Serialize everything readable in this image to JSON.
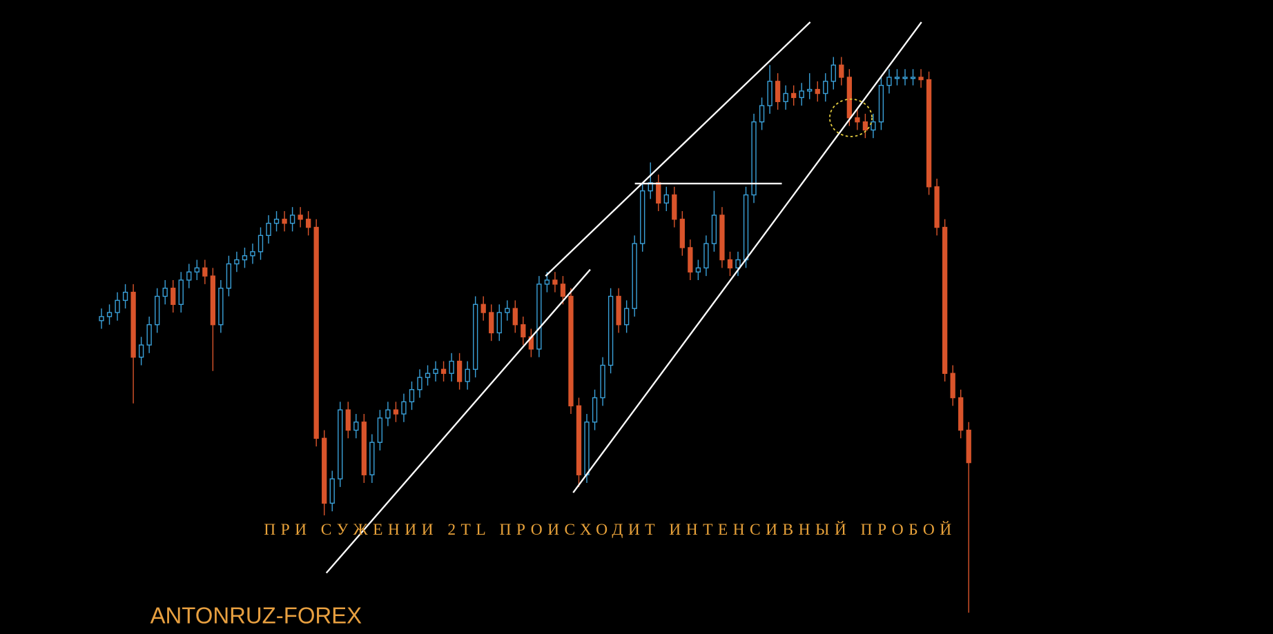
{
  "chart_data": {
    "type": "candlestick",
    "annotations": [
      "ПРИ СУЖЕНИИ 2TL ПРОИСХОДИТ ИНТЕНСИВНЫЙ ПРОБОЙ",
      "ANTONRUZ-FOREX"
    ],
    "up_color": "#3aa0d8",
    "down_color": "#d9542b",
    "ylim": [
      0,
      781
    ],
    "open": [
      386,
      391,
      396,
      411,
      421,
      341,
      356,
      381,
      416,
      426,
      406,
      436,
      446,
      451,
      441,
      381,
      426,
      456,
      461,
      466,
      471,
      491,
      506,
      511,
      506,
      516,
      511,
      501,
      241,
      161,
      191,
      276,
      251,
      261,
      196,
      236,
      266,
      276,
      271,
      286,
      301,
      316,
      321,
      326,
      321,
      336,
      311,
      326,
      406,
      396,
      371,
      396,
      401,
      381,
      366,
      351,
      431,
      436,
      431,
      416,
      281,
      196,
      261,
      291,
      331,
      416,
      381,
      401,
      481,
      546,
      556,
      531,
      541,
      511,
      476,
      446,
      451,
      481,
      516,
      461,
      451,
      461,
      541,
      631,
      651,
      681,
      656,
      666,
      661,
      669,
      671,
      666,
      681,
      701,
      686,
      636,
      631,
      621,
      631,
      676,
      686,
      686,
      686,
      686,
      683,
      551,
      501,
      321,
      291,
      251
    ],
    "high": [
      401,
      406,
      421,
      431,
      431,
      366,
      391,
      426,
      436,
      436,
      446,
      456,
      461,
      461,
      451,
      436,
      466,
      471,
      476,
      481,
      501,
      516,
      521,
      521,
      526,
      526,
      521,
      511,
      251,
      201,
      286,
      286,
      271,
      271,
      246,
      276,
      286,
      286,
      296,
      311,
      326,
      331,
      336,
      336,
      346,
      346,
      336,
      416,
      416,
      406,
      406,
      411,
      411,
      391,
      376,
      441,
      446,
      446,
      441,
      426,
      291,
      271,
      301,
      341,
      426,
      426,
      411,
      491,
      556,
      581,
      566,
      551,
      551,
      521,
      486,
      461,
      491,
      546,
      526,
      471,
      471,
      551,
      641,
      661,
      701,
      691,
      676,
      676,
      679,
      691,
      681,
      691,
      711,
      711,
      696,
      646,
      641,
      641,
      686,
      696,
      696,
      696,
      696,
      696,
      693,
      561,
      511,
      331,
      301,
      261
    ],
    "low": [
      376,
      381,
      386,
      401,
      284,
      331,
      346,
      371,
      406,
      396,
      396,
      426,
      436,
      431,
      324,
      371,
      416,
      446,
      451,
      456,
      461,
      481,
      496,
      496,
      496,
      501,
      491,
      231,
      146,
      151,
      181,
      241,
      241,
      186,
      186,
      226,
      256,
      261,
      261,
      276,
      291,
      306,
      311,
      311,
      311,
      301,
      301,
      316,
      386,
      361,
      361,
      386,
      371,
      356,
      341,
      341,
      421,
      421,
      406,
      271,
      181,
      186,
      251,
      281,
      321,
      371,
      371,
      391,
      471,
      536,
      521,
      521,
      501,
      466,
      436,
      436,
      441,
      471,
      451,
      441,
      441,
      451,
      531,
      621,
      641,
      646,
      646,
      651,
      651,
      659,
      656,
      656,
      671,
      676,
      626,
      621,
      611,
      611,
      621,
      666,
      676,
      676,
      676,
      673,
      541,
      491,
      311,
      281,
      241,
      26
    ],
    "close": [
      391,
      396,
      411,
      421,
      341,
      356,
      381,
      416,
      426,
      406,
      436,
      446,
      451,
      441,
      381,
      426,
      456,
      461,
      466,
      471,
      491,
      506,
      511,
      506,
      516,
      511,
      501,
      241,
      161,
      191,
      276,
      251,
      261,
      196,
      236,
      266,
      276,
      271,
      286,
      301,
      316,
      321,
      326,
      321,
      336,
      311,
      326,
      406,
      396,
      371,
      396,
      401,
      381,
      366,
      351,
      431,
      436,
      431,
      416,
      281,
      196,
      261,
      291,
      331,
      416,
      381,
      401,
      481,
      546,
      556,
      531,
      541,
      511,
      476,
      446,
      451,
      481,
      516,
      461,
      451,
      461,
      541,
      631,
      651,
      681,
      656,
      666,
      661,
      669,
      671,
      666,
      681,
      701,
      686,
      636,
      631,
      621,
      631,
      676,
      686,
      686,
      686,
      686,
      683,
      551,
      501,
      321,
      291,
      251,
      211
    ]
  }
}
